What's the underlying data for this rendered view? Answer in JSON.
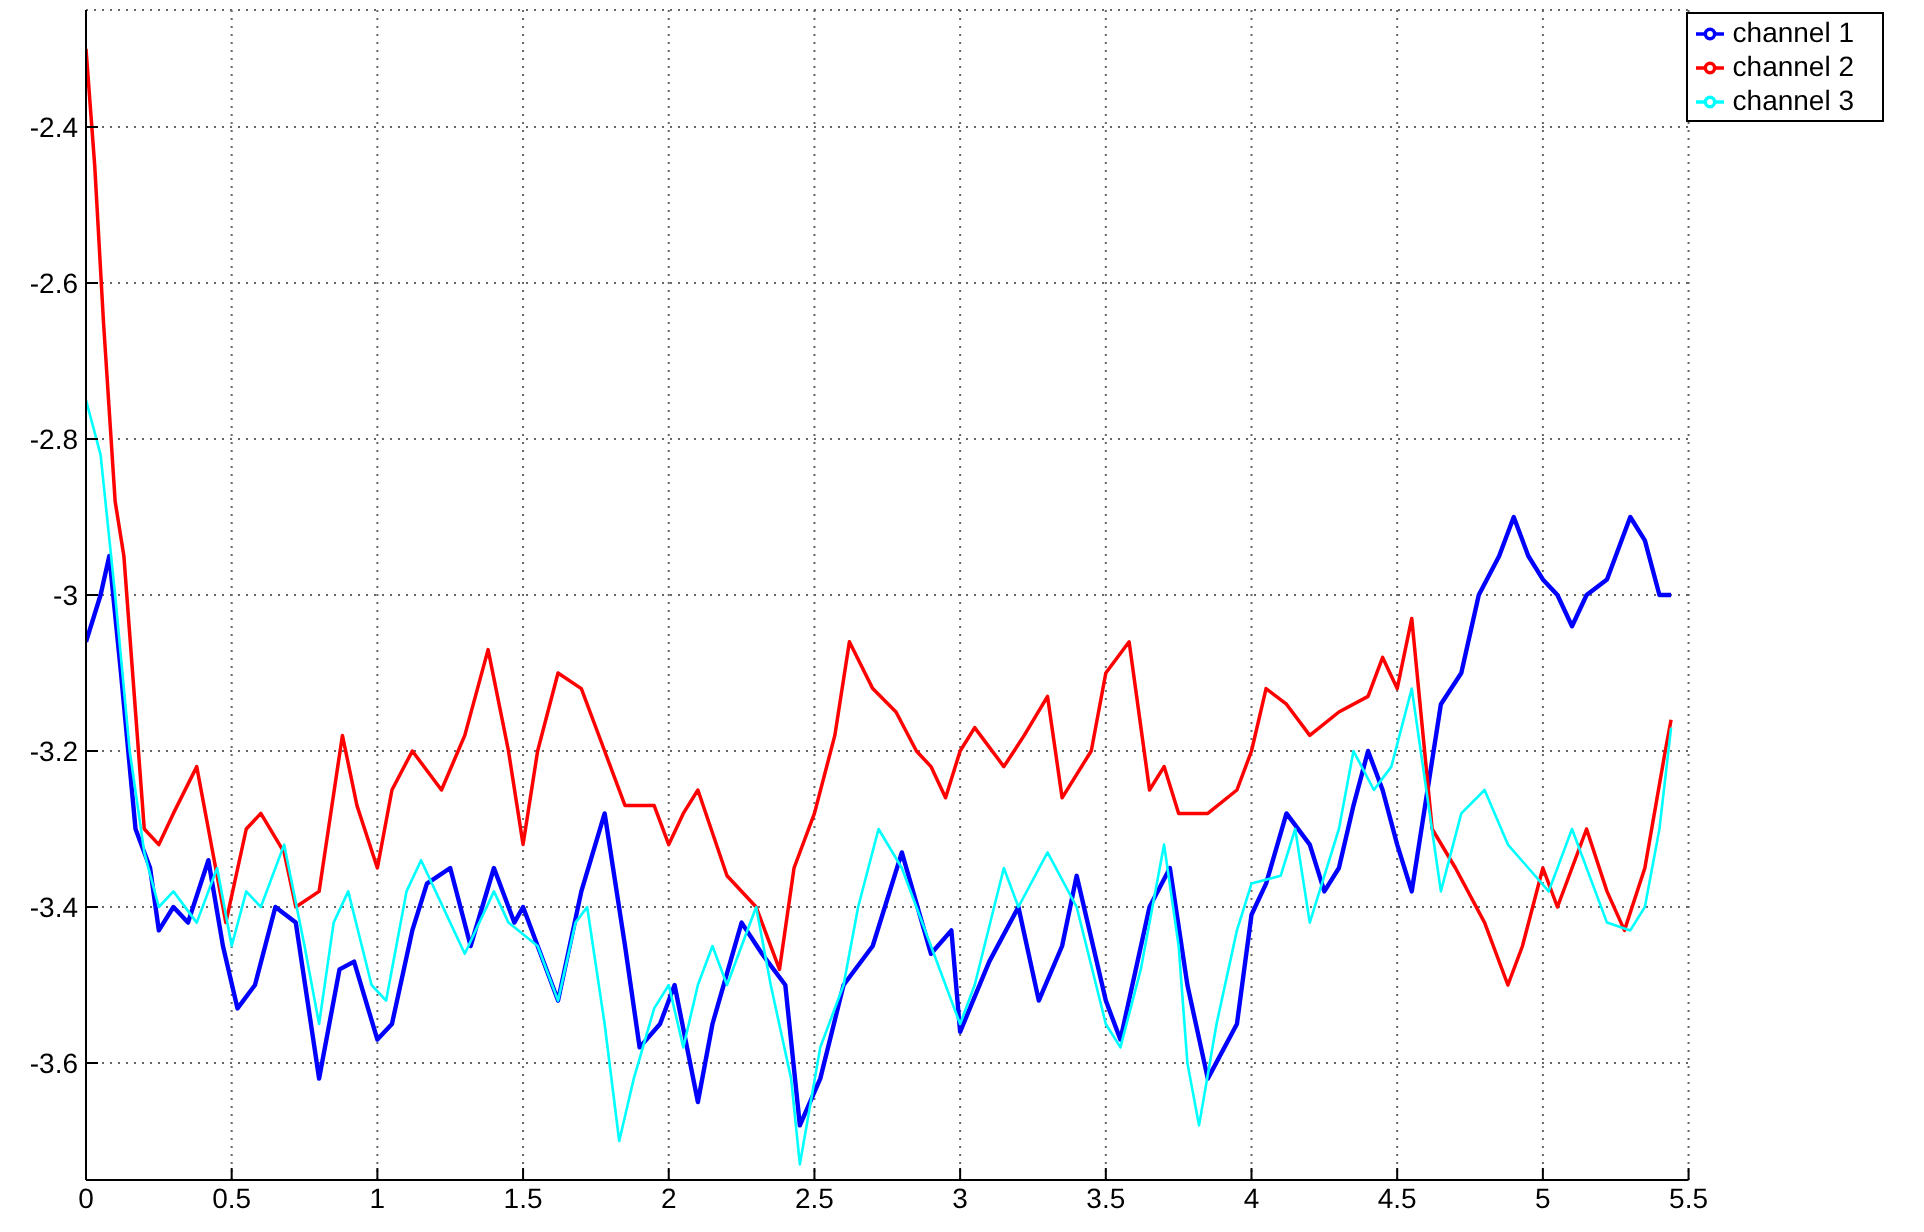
{
  "chart_data": {
    "type": "line",
    "xlim": [
      0,
      5.5
    ],
    "xticks": [
      0,
      0.5,
      1,
      1.5,
      2,
      2.5,
      3,
      3.5,
      4,
      4.5,
      5,
      5.5
    ],
    "ylim": [
      -3.75,
      -2.25
    ],
    "yticks": [
      -3.6,
      -3.4,
      -3.2,
      -3,
      -2.8,
      -2.6,
      -2.4
    ],
    "grid": true,
    "legend": "top right",
    "marker": "none",
    "line_style": "solid",
    "series": [
      {
        "name": "channel 1",
        "color": "#0000ff",
        "x": [
          0,
          0.05,
          0.08,
          0.12,
          0.17,
          0.22,
          0.25,
          0.3,
          0.35,
          0.42,
          0.47,
          0.52,
          0.58,
          0.65,
          0.72,
          0.8,
          0.87,
          0.92,
          1.0,
          1.05,
          1.12,
          1.17,
          1.25,
          1.32,
          1.4,
          1.47,
          1.5,
          1.57,
          1.62,
          1.7,
          1.78,
          1.85,
          1.9,
          1.97,
          2.02,
          2.1,
          2.15,
          2.25,
          2.32,
          2.4,
          2.45,
          2.52,
          2.6,
          2.7,
          2.8,
          2.9,
          2.97,
          3.0,
          3.1,
          3.2,
          3.27,
          3.35,
          3.4,
          3.5,
          3.55,
          3.65,
          3.72,
          3.78,
          3.85,
          3.95,
          4.0,
          4.05,
          4.12,
          4.2,
          4.25,
          4.3,
          4.35,
          4.4,
          4.45,
          4.5,
          4.55,
          4.6,
          4.65,
          4.72,
          4.78,
          4.85,
          4.9,
          4.95,
          5.0,
          5.05,
          5.1,
          5.15,
          5.22,
          5.3,
          5.35,
          5.4,
          5.44
        ],
        "values": [
          -3.06,
          -3.0,
          -2.95,
          -3.1,
          -3.3,
          -3.35,
          -3.43,
          -3.4,
          -3.42,
          -3.34,
          -3.45,
          -3.53,
          -3.5,
          -3.4,
          -3.42,
          -3.62,
          -3.48,
          -3.47,
          -3.57,
          -3.55,
          -3.43,
          -3.37,
          -3.35,
          -3.45,
          -3.35,
          -3.42,
          -3.4,
          -3.47,
          -3.52,
          -3.38,
          -3.28,
          -3.45,
          -3.58,
          -3.55,
          -3.5,
          -3.65,
          -3.55,
          -3.42,
          -3.46,
          -3.5,
          -3.68,
          -3.62,
          -3.5,
          -3.45,
          -3.33,
          -3.46,
          -3.43,
          -3.56,
          -3.47,
          -3.4,
          -3.52,
          -3.45,
          -3.36,
          -3.52,
          -3.57,
          -3.4,
          -3.35,
          -3.5,
          -3.62,
          -3.55,
          -3.41,
          -3.37,
          -3.28,
          -3.32,
          -3.38,
          -3.35,
          -3.27,
          -3.2,
          -3.25,
          -3.32,
          -3.38,
          -3.26,
          -3.14,
          -3.1,
          -3.0,
          -2.95,
          -2.9,
          -2.95,
          -2.98,
          -3.0,
          -3.04,
          -3.0,
          -2.98,
          -2.9,
          -2.93,
          -3.0,
          -3.0
        ]
      },
      {
        "name": "channel 2",
        "color": "#ff0000",
        "x": [
          0,
          0.03,
          0.06,
          0.1,
          0.13,
          0.17,
          0.2,
          0.25,
          0.3,
          0.38,
          0.42,
          0.48,
          0.55,
          0.6,
          0.68,
          0.72,
          0.8,
          0.88,
          0.93,
          1.0,
          1.05,
          1.12,
          1.22,
          1.3,
          1.38,
          1.45,
          1.5,
          1.55,
          1.62,
          1.7,
          1.78,
          1.85,
          1.95,
          2.0,
          2.05,
          2.1,
          2.2,
          2.3,
          2.38,
          2.43,
          2.5,
          2.57,
          2.62,
          2.7,
          2.78,
          2.85,
          2.9,
          2.95,
          3.0,
          3.05,
          3.15,
          3.22,
          3.3,
          3.35,
          3.45,
          3.5,
          3.58,
          3.65,
          3.7,
          3.75,
          3.85,
          3.95,
          4.0,
          4.05,
          4.12,
          4.2,
          4.3,
          4.4,
          4.45,
          4.5,
          4.55,
          4.62,
          4.7,
          4.8,
          4.88,
          4.93,
          5.0,
          5.05,
          5.1,
          5.15,
          5.22,
          5.28,
          5.35,
          5.42,
          5.44
        ],
        "values": [
          -2.3,
          -2.45,
          -2.65,
          -2.88,
          -2.95,
          -3.15,
          -3.3,
          -3.32,
          -3.28,
          -3.22,
          -3.3,
          -3.42,
          -3.3,
          -3.28,
          -3.33,
          -3.4,
          -3.38,
          -3.18,
          -3.27,
          -3.35,
          -3.25,
          -3.2,
          -3.25,
          -3.18,
          -3.07,
          -3.2,
          -3.32,
          -3.2,
          -3.1,
          -3.12,
          -3.2,
          -3.27,
          -3.27,
          -3.32,
          -3.28,
          -3.25,
          -3.36,
          -3.4,
          -3.48,
          -3.35,
          -3.28,
          -3.18,
          -3.06,
          -3.12,
          -3.15,
          -3.2,
          -3.22,
          -3.26,
          -3.2,
          -3.17,
          -3.22,
          -3.18,
          -3.13,
          -3.26,
          -3.2,
          -3.1,
          -3.06,
          -3.25,
          -3.22,
          -3.28,
          -3.28,
          -3.25,
          -3.2,
          -3.12,
          -3.14,
          -3.18,
          -3.15,
          -3.13,
          -3.08,
          -3.12,
          -3.03,
          -3.3,
          -3.35,
          -3.42,
          -3.5,
          -3.45,
          -3.35,
          -3.4,
          -3.35,
          -3.3,
          -3.38,
          -3.43,
          -3.35,
          -3.2,
          -3.16
        ]
      },
      {
        "name": "channel 3",
        "color": "#00ffff",
        "x": [
          0,
          0.05,
          0.1,
          0.15,
          0.2,
          0.25,
          0.3,
          0.38,
          0.45,
          0.5,
          0.55,
          0.6,
          0.68,
          0.75,
          0.8,
          0.85,
          0.9,
          0.98,
          1.03,
          1.1,
          1.15,
          1.25,
          1.3,
          1.4,
          1.45,
          1.55,
          1.62,
          1.68,
          1.72,
          1.78,
          1.83,
          1.88,
          1.95,
          2.0,
          2.05,
          2.1,
          2.15,
          2.2,
          2.3,
          2.35,
          2.42,
          2.45,
          2.52,
          2.6,
          2.65,
          2.72,
          2.8,
          2.9,
          3.0,
          3.05,
          3.15,
          3.2,
          3.3,
          3.4,
          3.5,
          3.55,
          3.62,
          3.7,
          3.75,
          3.78,
          3.82,
          3.88,
          3.95,
          4.0,
          4.1,
          4.15,
          4.2,
          4.3,
          4.35,
          4.42,
          4.48,
          4.55,
          4.6,
          4.65,
          4.72,
          4.8,
          4.88,
          4.95,
          5.02,
          5.1,
          5.18,
          5.22,
          5.3,
          5.35,
          5.4,
          5.44
        ],
        "values": [
          -2.75,
          -2.82,
          -3.0,
          -3.2,
          -3.33,
          -3.4,
          -3.38,
          -3.42,
          -3.35,
          -3.45,
          -3.38,
          -3.4,
          -3.32,
          -3.45,
          -3.55,
          -3.42,
          -3.38,
          -3.5,
          -3.52,
          -3.38,
          -3.34,
          -3.42,
          -3.46,
          -3.38,
          -3.42,
          -3.45,
          -3.52,
          -3.42,
          -3.4,
          -3.55,
          -3.7,
          -3.62,
          -3.53,
          -3.5,
          -3.58,
          -3.5,
          -3.45,
          -3.5,
          -3.4,
          -3.5,
          -3.62,
          -3.73,
          -3.58,
          -3.5,
          -3.4,
          -3.3,
          -3.35,
          -3.45,
          -3.55,
          -3.5,
          -3.35,
          -3.4,
          -3.33,
          -3.4,
          -3.55,
          -3.58,
          -3.48,
          -3.32,
          -3.45,
          -3.6,
          -3.68,
          -3.55,
          -3.43,
          -3.37,
          -3.36,
          -3.3,
          -3.42,
          -3.3,
          -3.2,
          -3.25,
          -3.22,
          -3.12,
          -3.25,
          -3.38,
          -3.28,
          -3.25,
          -3.32,
          -3.35,
          -3.38,
          -3.3,
          -3.38,
          -3.42,
          -3.43,
          -3.4,
          -3.3,
          -3.17
        ]
      }
    ]
  }
}
